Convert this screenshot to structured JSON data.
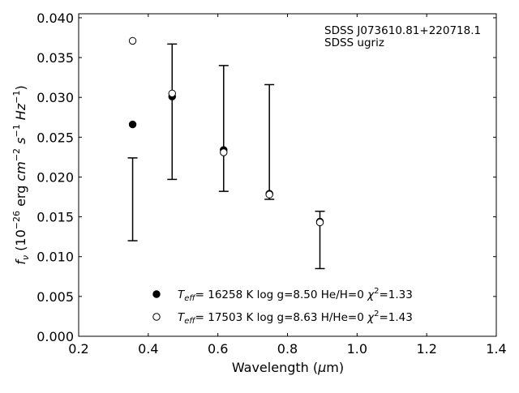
{
  "chart_data": {
    "type": "scatter",
    "title": "",
    "annotation": [
      "SDSS J073610.81+220718.1",
      "SDSS ugriz"
    ],
    "xlabel": "Wavelength (μm)",
    "ylabel": "f_ν (10^-26 erg cm^-2 s^-1 Hz^-1)",
    "xlim": [
      0.2,
      1.4
    ],
    "ylim": [
      0.0,
      0.0405
    ],
    "xticks": [
      "0.2",
      "0.4",
      "0.6",
      "0.8",
      "1.0",
      "1.2",
      "1.4"
    ],
    "yticks": [
      "0.000",
      "0.005",
      "0.010",
      "0.015",
      "0.020",
      "0.025",
      "0.030",
      "0.035",
      "0.040"
    ],
    "grid": false,
    "legend_position": "bottom-center",
    "observed": {
      "name": "SDSS ugriz",
      "x": [
        0.3551,
        0.4686,
        0.6166,
        0.748,
        0.8932
      ],
      "y": [
        0.0172,
        0.0282,
        0.0261,
        0.0244,
        0.0121
      ],
      "err": [
        0.0052,
        0.0085,
        0.0079,
        0.0072,
        0.0036
      ]
    },
    "series": [
      {
        "name_parts": {
          "teff": "= 16258 K",
          "logg": "log g=8.50",
          "comp": "He/H=0",
          "chi2": "=1.33"
        },
        "marker": "filled",
        "x": [
          0.3551,
          0.4686,
          0.6166,
          0.748,
          0.8932
        ],
        "y": [
          0.0266,
          0.0301,
          0.0234,
          0.0179,
          0.0144
        ]
      },
      {
        "name_parts": {
          "teff": "= 17503 K",
          "logg": "log g=8.63",
          "comp": "H/He=0",
          "chi2": "=1.43"
        },
        "marker": "open",
        "x": [
          0.3551,
          0.4686,
          0.6166,
          0.748,
          0.8932
        ],
        "y": [
          0.0371,
          0.0305,
          0.0231,
          0.0178,
          0.0143
        ]
      }
    ]
  }
}
